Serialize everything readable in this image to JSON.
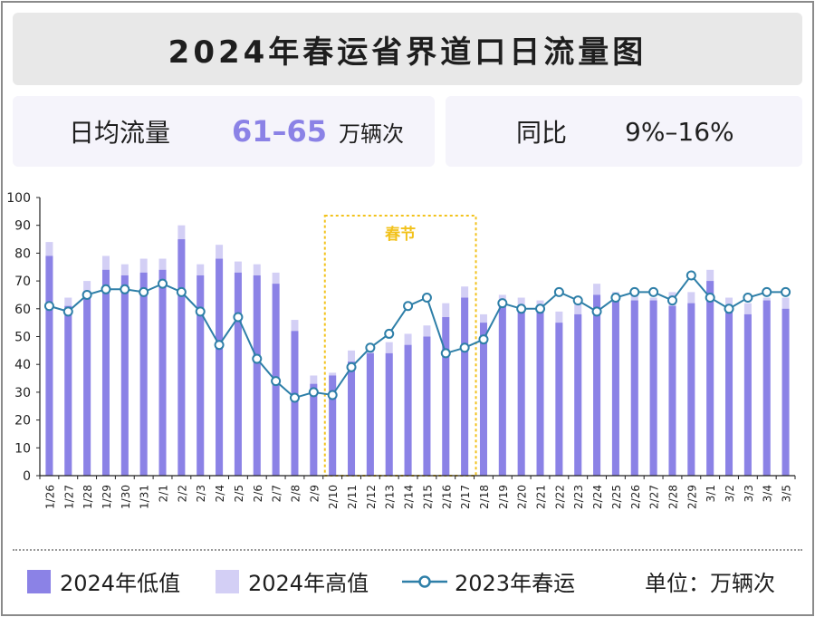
{
  "header": {
    "title": "2024年春运省界道口日流量图"
  },
  "stats": {
    "daily_label": "日均流量",
    "daily_value": "61–65",
    "daily_unit": "万辆次",
    "yoy_label": "同比",
    "yoy_value": "9%–16%"
  },
  "legend": {
    "low_label": "2024年低值",
    "high_label": "2024年高值",
    "line_label": "2023年春运",
    "unit_label": "单位：万辆次"
  },
  "colors": {
    "low": "#8b82e6",
    "high": "#d3cff5",
    "line": "#2e7fa8",
    "highlight": "#f2c21b",
    "accent": "#8b82e6"
  },
  "chart_data": {
    "type": "bar",
    "title": "2024年春运省界道口日流量图",
    "xlabel": "",
    "ylabel": "",
    "ylim": [
      0,
      100
    ],
    "yticks": [
      0,
      10,
      20,
      30,
      40,
      50,
      60,
      70,
      80,
      90,
      100
    ],
    "grid": false,
    "legend_position": "bottom",
    "highlight": {
      "label": "春节",
      "from": "2/10",
      "to": "2/17"
    },
    "categories": [
      "1/26",
      "1/27",
      "1/28",
      "1/29",
      "1/30",
      "1/31",
      "2/1",
      "2/2",
      "2/3",
      "2/4",
      "2/5",
      "2/6",
      "2/7",
      "2/8",
      "2/9",
      "2/10",
      "2/11",
      "2/12",
      "2/13",
      "2/14",
      "2/15",
      "2/16",
      "2/17",
      "2/18",
      "2/19",
      "2/20",
      "2/21",
      "2/22",
      "2/23",
      "2/24",
      "2/25",
      "2/26",
      "2/27",
      "2/28",
      "2/29",
      "3/1",
      "3/2",
      "3/3",
      "3/4",
      "3/5"
    ],
    "series": [
      {
        "name": "2024年低值",
        "type": "bar",
        "values": [
          79,
          61,
          66,
          74,
          72,
          73,
          74,
          85,
          72,
          78,
          73,
          72,
          69,
          52,
          33,
          36,
          41,
          44,
          44,
          47,
          50,
          57,
          64,
          55,
          62,
          61,
          59,
          55,
          58,
          65,
          63,
          63,
          63,
          61,
          62,
          70,
          60,
          58,
          63,
          60
        ]
      },
      {
        "name": "2024年高值",
        "type": "bar",
        "values": [
          84,
          64,
          70,
          79,
          76,
          78,
          78,
          90,
          76,
          83,
          77,
          76,
          73,
          56,
          36,
          37,
          45,
          47,
          48,
          51,
          54,
          62,
          68,
          58,
          65,
          64,
          63,
          59,
          62,
          69,
          66,
          65,
          64,
          66,
          66,
          74,
          64,
          62,
          64,
          64
        ]
      },
      {
        "name": "2023年春运",
        "type": "line",
        "values": [
          61,
          59,
          65,
          67,
          67,
          66,
          69,
          66,
          59,
          47,
          57,
          42,
          34,
          28,
          30,
          29,
          39,
          46,
          51,
          61,
          64,
          44,
          46,
          49,
          62,
          60,
          60,
          66,
          63,
          59,
          64,
          66,
          66,
          63,
          72,
          64,
          60,
          64,
          66,
          66
        ]
      }
    ]
  }
}
